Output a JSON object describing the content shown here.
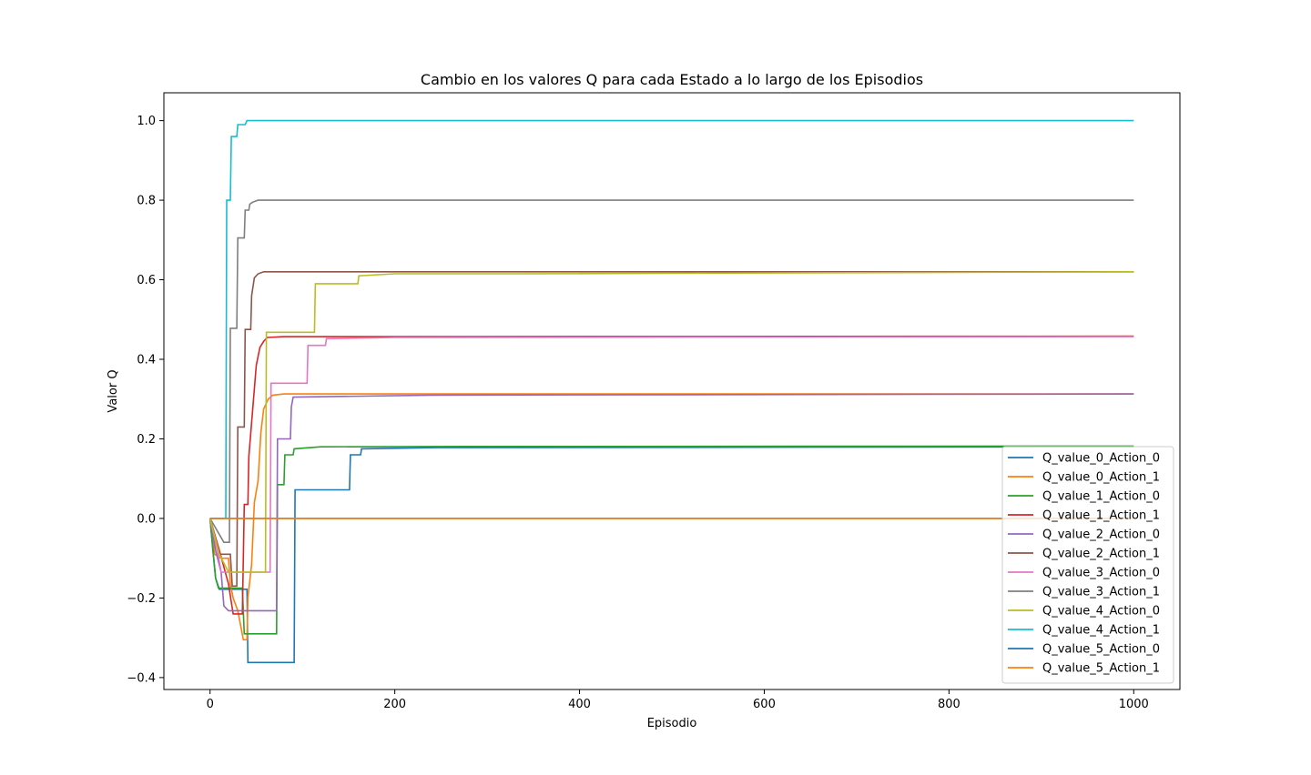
{
  "chart_data": {
    "type": "line",
    "title": "Cambio en los valores Q para cada Estado a lo largo de los Episodios",
    "xlabel": "Episodio",
    "ylabel": "Valor Q",
    "xlim": [
      -50,
      1050
    ],
    "ylim": [
      -0.43,
      1.07
    ],
    "xticks": [
      0,
      200,
      400,
      600,
      800,
      1000
    ],
    "yticks": [
      -0.4,
      -0.2,
      0.0,
      0.2,
      0.4,
      0.6,
      0.8,
      1.0
    ],
    "ytick_labels": [
      "−0.4",
      "−0.2",
      "0.0",
      "0.2",
      "0.4",
      "0.6",
      "0.8",
      "1.0"
    ],
    "grid": false,
    "legend_position": "lower-right",
    "series": [
      {
        "name": "Q_value_0_Action_0",
        "color": "#1f77b4",
        "points": [
          [
            0,
            0
          ],
          [
            3,
            -0.08
          ],
          [
            6,
            -0.15
          ],
          [
            10,
            -0.178
          ],
          [
            40,
            -0.178
          ],
          [
            41,
            -0.362
          ],
          [
            91,
            -0.362
          ],
          [
            92,
            0.072
          ],
          [
            151,
            0.072
          ],
          [
            152,
            0.16
          ],
          [
            163,
            0.16
          ],
          [
            164,
            0.175
          ],
          [
            245,
            0.178
          ],
          [
            1000,
            0.18
          ]
        ]
      },
      {
        "name": "Q_value_0_Action_1",
        "color": "#ff7f0e",
        "points": [
          [
            0,
            0
          ],
          [
            5,
            -0.09
          ],
          [
            12,
            -0.1
          ],
          [
            20,
            -0.1
          ],
          [
            22,
            -0.165
          ],
          [
            25,
            -0.2
          ],
          [
            30,
            -0.232
          ],
          [
            36,
            -0.305
          ],
          [
            40,
            -0.305
          ],
          [
            41,
            -0.2
          ],
          [
            45,
            -0.115
          ],
          [
            48,
            0.04
          ],
          [
            52,
            0.095
          ],
          [
            55,
            0.215
          ],
          [
            58,
            0.275
          ],
          [
            63,
            0.3
          ],
          [
            68,
            0.31
          ],
          [
            80,
            0.313
          ],
          [
            240,
            0.313
          ],
          [
            1000,
            0.313
          ]
        ]
      },
      {
        "name": "Q_value_1_Action_0",
        "color": "#2ca02c",
        "points": [
          [
            0,
            0
          ],
          [
            4,
            -0.1
          ],
          [
            6,
            -0.15
          ],
          [
            9,
            -0.175
          ],
          [
            35,
            -0.175
          ],
          [
            37,
            -0.29
          ],
          [
            72,
            -0.29
          ],
          [
            73,
            0.085
          ],
          [
            80,
            0.085
          ],
          [
            81,
            0.16
          ],
          [
            90,
            0.16
          ],
          [
            91,
            0.175
          ],
          [
            120,
            0.18
          ],
          [
            300,
            0.181
          ],
          [
            1000,
            0.182
          ]
        ]
      },
      {
        "name": "Q_value_1_Action_1",
        "color": "#d62728",
        "points": [
          [
            0,
            0
          ],
          [
            10,
            -0.08
          ],
          [
            20,
            -0.165
          ],
          [
            25,
            -0.24
          ],
          [
            35,
            -0.24
          ],
          [
            37,
            0.035
          ],
          [
            41,
            0.035
          ],
          [
            42,
            0.155
          ],
          [
            46,
            0.27
          ],
          [
            50,
            0.385
          ],
          [
            54,
            0.43
          ],
          [
            58,
            0.445
          ],
          [
            62,
            0.455
          ],
          [
            80,
            0.457
          ],
          [
            165,
            0.457
          ],
          [
            1000,
            0.458
          ]
        ]
      },
      {
        "name": "Q_value_2_Action_0",
        "color": "#9467bd",
        "points": [
          [
            0,
            0
          ],
          [
            6,
            -0.08
          ],
          [
            12,
            -0.135
          ],
          [
            15,
            -0.22
          ],
          [
            20,
            -0.232
          ],
          [
            72,
            -0.232
          ],
          [
            73,
            0.2
          ],
          [
            87,
            0.2
          ],
          [
            88,
            0.28
          ],
          [
            90,
            0.305
          ],
          [
            240,
            0.31
          ],
          [
            1000,
            0.313
          ]
        ]
      },
      {
        "name": "Q_value_2_Action_1",
        "color": "#8c564b",
        "points": [
          [
            0,
            0
          ],
          [
            10,
            -0.09
          ],
          [
            22,
            -0.09
          ],
          [
            24,
            -0.17
          ],
          [
            29,
            -0.17
          ],
          [
            30,
            0.23
          ],
          [
            37,
            0.23
          ],
          [
            38,
            0.475
          ],
          [
            44,
            0.475
          ],
          [
            45,
            0.56
          ],
          [
            48,
            0.605
          ],
          [
            52,
            0.615
          ],
          [
            58,
            0.62
          ],
          [
            1000,
            0.62
          ]
        ]
      },
      {
        "name": "Q_value_3_Action_0",
        "color": "#e377c2",
        "points": [
          [
            0,
            0
          ],
          [
            8,
            -0.08
          ],
          [
            12,
            -0.135
          ],
          [
            65,
            -0.135
          ],
          [
            66,
            0.34
          ],
          [
            105,
            0.34
          ],
          [
            106,
            0.435
          ],
          [
            125,
            0.435
          ],
          [
            126,
            0.452
          ],
          [
            200,
            0.455
          ],
          [
            1000,
            0.457
          ]
        ]
      },
      {
        "name": "Q_value_3_Action_1",
        "color": "#7f7f7f",
        "points": [
          [
            0,
            0
          ],
          [
            15,
            -0.06
          ],
          [
            21,
            -0.06
          ],
          [
            22,
            0.478
          ],
          [
            29,
            0.478
          ],
          [
            30,
            0.705
          ],
          [
            37,
            0.705
          ],
          [
            38,
            0.775
          ],
          [
            42,
            0.775
          ],
          [
            43,
            0.79
          ],
          [
            46,
            0.795
          ],
          [
            52,
            0.8
          ],
          [
            1000,
            0.8
          ]
        ]
      },
      {
        "name": "Q_value_4_Action_0",
        "color": "#bcbd22",
        "points": [
          [
            0,
            0
          ],
          [
            10,
            -0.09
          ],
          [
            20,
            -0.135
          ],
          [
            60,
            -0.135
          ],
          [
            61,
            0.468
          ],
          [
            113,
            0.468
          ],
          [
            114,
            0.59
          ],
          [
            160,
            0.59
          ],
          [
            161,
            0.61
          ],
          [
            200,
            0.615
          ],
          [
            330,
            0.615
          ],
          [
            1000,
            0.62
          ]
        ]
      },
      {
        "name": "Q_value_4_Action_1",
        "color": "#17becf",
        "points": [
          [
            0,
            0
          ],
          [
            17,
            0
          ],
          [
            18,
            0.8
          ],
          [
            22,
            0.8
          ],
          [
            23,
            0.96
          ],
          [
            29,
            0.96
          ],
          [
            30,
            0.99
          ],
          [
            38,
            0.99
          ],
          [
            40,
            1.0
          ],
          [
            1000,
            1.0
          ]
        ]
      },
      {
        "name": "Q_value_5_Action_0",
        "color": "#1f77b4",
        "points": [
          [
            0,
            0
          ],
          [
            1000,
            0
          ]
        ]
      },
      {
        "name": "Q_value_5_Action_1",
        "color": "#ff7f0e",
        "points": [
          [
            0,
            0
          ],
          [
            1000,
            0
          ]
        ]
      }
    ]
  }
}
